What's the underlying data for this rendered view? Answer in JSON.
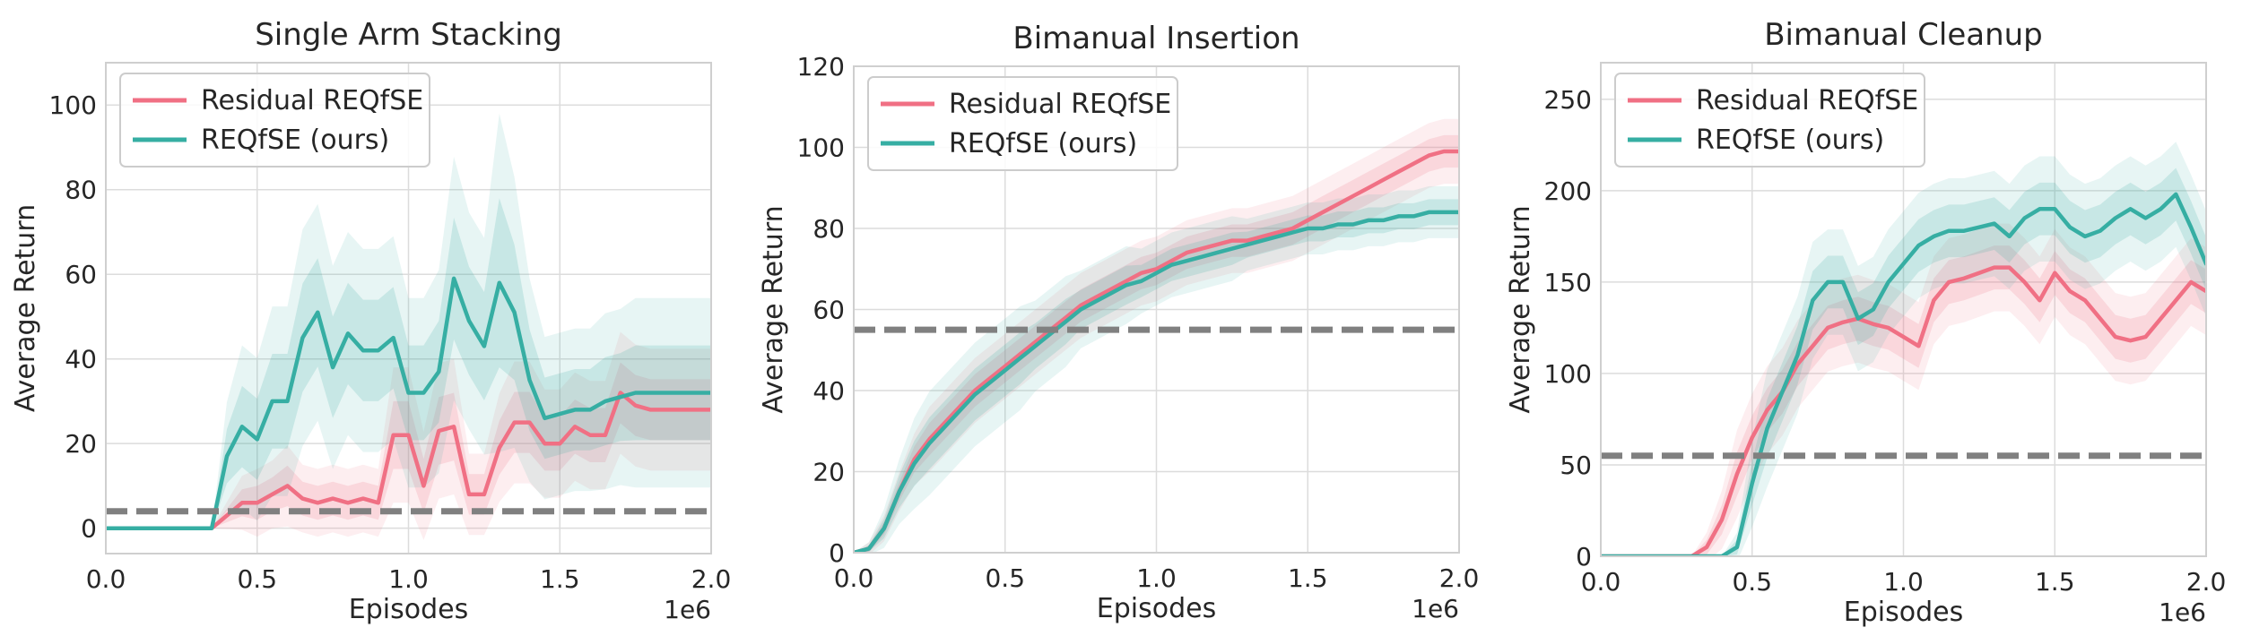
{
  "chart_data": [
    {
      "type": "line",
      "title": "Single Arm Stacking",
      "xlabel": "Episodes",
      "ylabel": "Average Return",
      "x_multiplier_label": "1e6",
      "xlim": [
        0,
        2.0
      ],
      "ylim": [
        -6,
        110
      ],
      "xticks": [
        0.0,
        0.5,
        1.0,
        1.5,
        2.0
      ],
      "xtick_labels": [
        "0.0",
        "0.5",
        "1.0",
        "1.5",
        "2.0"
      ],
      "yticks": [
        0,
        20,
        40,
        60,
        80,
        100
      ],
      "ytick_labels": [
        "0",
        "20",
        "40",
        "60",
        "80",
        "100"
      ],
      "grid": true,
      "legend_position": "top-left",
      "baseline": 4,
      "series": [
        {
          "name": "Residual REQfSE",
          "color": "#f07084",
          "x": [
            0,
            0.05,
            0.1,
            0.15,
            0.2,
            0.25,
            0.3,
            0.35,
            0.4,
            0.45,
            0.5,
            0.55,
            0.6,
            0.65,
            0.7,
            0.75,
            0.8,
            0.85,
            0.9,
            0.95,
            1.0,
            1.05,
            1.1,
            1.15,
            1.2,
            1.25,
            1.3,
            1.35,
            1.4,
            1.45,
            1.5,
            1.55,
            1.6,
            1.65,
            1.7,
            1.75,
            1.8,
            1.85,
            1.9,
            1.95,
            2.0
          ],
          "values": [
            0,
            0,
            0,
            0,
            0,
            0,
            0,
            0,
            3,
            6,
            6,
            8,
            10,
            7,
            6,
            7,
            6,
            7,
            6,
            22,
            22,
            10,
            23,
            24,
            8,
            8,
            19,
            25,
            25,
            20,
            20,
            24,
            22,
            22,
            32,
            29,
            28,
            28,
            28,
            28,
            28
          ],
          "spread": [
            0,
            0,
            0,
            0,
            0,
            0,
            0,
            0,
            2,
            4,
            5,
            5,
            6,
            5,
            5,
            5,
            5,
            5,
            5,
            10,
            10,
            8,
            10,
            10,
            6,
            6,
            8,
            9,
            9,
            8,
            8,
            8,
            8,
            8,
            9,
            9,
            9,
            9,
            9,
            9,
            9
          ]
        },
        {
          "name": "REQfSE (ours)",
          "color": "#36aea3",
          "x": [
            0,
            0.05,
            0.1,
            0.15,
            0.2,
            0.25,
            0.3,
            0.35,
            0.4,
            0.45,
            0.5,
            0.55,
            0.6,
            0.65,
            0.7,
            0.75,
            0.8,
            0.85,
            0.9,
            0.95,
            1.0,
            1.05,
            1.1,
            1.15,
            1.2,
            1.25,
            1.3,
            1.35,
            1.4,
            1.45,
            1.5,
            1.55,
            1.6,
            1.65,
            1.7,
            1.75,
            1.8,
            1.85,
            1.9,
            1.95,
            2.0
          ],
          "values": [
            0,
            0,
            0,
            0,
            0,
            0,
            0,
            0,
            17,
            24,
            21,
            30,
            30,
            45,
            51,
            38,
            46,
            42,
            42,
            45,
            32,
            32,
            37,
            59,
            49,
            43,
            58,
            51,
            35,
            26,
            27,
            28,
            28,
            30,
            31,
            32,
            32,
            32,
            32,
            32,
            32
          ],
          "spread": [
            0,
            0,
            0,
            0,
            0,
            0,
            0,
            0,
            8,
            12,
            12,
            14,
            14,
            16,
            16,
            15,
            15,
            15,
            15,
            15,
            14,
            14,
            15,
            18,
            16,
            16,
            25,
            20,
            15,
            12,
            12,
            12,
            12,
            13,
            13,
            14,
            14,
            14,
            14,
            14,
            14
          ]
        }
      ]
    },
    {
      "type": "line",
      "title": "Bimanual Insertion",
      "xlabel": "Episodes",
      "ylabel": "Average Return",
      "x_multiplier_label": "1e6",
      "xlim": [
        0,
        2.0
      ],
      "ylim": [
        0,
        120
      ],
      "xticks": [
        0.0,
        0.5,
        1.0,
        1.5,
        2.0
      ],
      "xtick_labels": [
        "0.0",
        "0.5",
        "1.0",
        "1.5",
        "2.0"
      ],
      "yticks": [
        0,
        20,
        40,
        60,
        80,
        100,
        120
      ],
      "ytick_labels": [
        "0",
        "20",
        "40",
        "60",
        "80",
        "100",
        "120"
      ],
      "grid": true,
      "legend_position": "top-left",
      "baseline": 55,
      "series": [
        {
          "name": "Residual REQfSE",
          "color": "#f07084",
          "x": [
            0,
            0.05,
            0.1,
            0.15,
            0.2,
            0.25,
            0.3,
            0.35,
            0.4,
            0.45,
            0.5,
            0.55,
            0.6,
            0.65,
            0.7,
            0.75,
            0.8,
            0.85,
            0.9,
            0.95,
            1.0,
            1.05,
            1.1,
            1.15,
            1.2,
            1.25,
            1.3,
            1.35,
            1.4,
            1.45,
            1.5,
            1.55,
            1.6,
            1.65,
            1.7,
            1.75,
            1.8,
            1.85,
            1.9,
            1.95,
            2.0
          ],
          "values": [
            0,
            1,
            6,
            15,
            23,
            28,
            32,
            36,
            40,
            43,
            46,
            49,
            52,
            55,
            58,
            61,
            63,
            65,
            67,
            69,
            70,
            72,
            74,
            75,
            76,
            77,
            77,
            78,
            79,
            80,
            82,
            84,
            86,
            88,
            90,
            92,
            94,
            96,
            98,
            99,
            99
          ],
          "spread": [
            0,
            1,
            2,
            3,
            4,
            5,
            5,
            5,
            5,
            5,
            5,
            5,
            5,
            5,
            5,
            5,
            5,
            5,
            5,
            5,
            5,
            5,
            5,
            5,
            5,
            5,
            5,
            5,
            5,
            5,
            5,
            5,
            5,
            5,
            5,
            5,
            5,
            5,
            5,
            5,
            5
          ]
        },
        {
          "name": "REQfSE (ours)",
          "color": "#36aea3",
          "x": [
            0,
            0.05,
            0.1,
            0.15,
            0.2,
            0.25,
            0.3,
            0.35,
            0.4,
            0.45,
            0.5,
            0.55,
            0.6,
            0.65,
            0.7,
            0.75,
            0.8,
            0.85,
            0.9,
            0.95,
            1.0,
            1.05,
            1.1,
            1.15,
            1.2,
            1.25,
            1.3,
            1.35,
            1.4,
            1.45,
            1.5,
            1.55,
            1.6,
            1.65,
            1.7,
            1.75,
            1.8,
            1.85,
            1.9,
            1.95,
            2.0
          ],
          "values": [
            0,
            1,
            6,
            15,
            22,
            27,
            31,
            35,
            39,
            42,
            45,
            48,
            51,
            54,
            57,
            60,
            62,
            64,
            66,
            67,
            69,
            71,
            72,
            73,
            74,
            75,
            76,
            77,
            78,
            79,
            80,
            80,
            81,
            81,
            82,
            82,
            83,
            83,
            84,
            84,
            84
          ],
          "spread": [
            0,
            1,
            3,
            5,
            7,
            8,
            8,
            8,
            8,
            8,
            8,
            8,
            7,
            7,
            7,
            6,
            6,
            6,
            6,
            5,
            5,
            5,
            5,
            5,
            5,
            5,
            4,
            4,
            4,
            4,
            4,
            4,
            4,
            4,
            4,
            4,
            4,
            4,
            4,
            4,
            4
          ]
        }
      ]
    },
    {
      "type": "line",
      "title": "Bimanual Cleanup",
      "xlabel": "Episodes",
      "ylabel": "Average Return",
      "x_multiplier_label": "1e6",
      "xlim": [
        0,
        2.0
      ],
      "ylim": [
        0,
        270
      ],
      "xticks": [
        0.0,
        0.5,
        1.0,
        1.5,
        2.0
      ],
      "xtick_labels": [
        "0.0",
        "0.5",
        "1.0",
        "1.5",
        "2.0"
      ],
      "yticks": [
        0,
        50,
        100,
        150,
        200,
        250
      ],
      "ytick_labels": [
        "0",
        "50",
        "100",
        "150",
        "200",
        "250"
      ],
      "grid": true,
      "legend_position": "top-left",
      "baseline": 55,
      "series": [
        {
          "name": "Residual REQfSE",
          "color": "#f07084",
          "x": [
            0,
            0.05,
            0.1,
            0.15,
            0.2,
            0.25,
            0.3,
            0.35,
            0.4,
            0.45,
            0.5,
            0.55,
            0.6,
            0.65,
            0.7,
            0.75,
            0.8,
            0.85,
            0.9,
            0.95,
            1.0,
            1.05,
            1.1,
            1.15,
            1.2,
            1.25,
            1.3,
            1.35,
            1.4,
            1.45,
            1.5,
            1.55,
            1.6,
            1.65,
            1.7,
            1.75,
            1.8,
            1.85,
            1.9,
            1.95,
            2.0
          ],
          "values": [
            0,
            0,
            0,
            0,
            0,
            0,
            0,
            5,
            20,
            45,
            65,
            80,
            90,
            105,
            115,
            125,
            128,
            130,
            127,
            125,
            120,
            115,
            140,
            150,
            152,
            155,
            158,
            158,
            150,
            140,
            155,
            145,
            140,
            130,
            120,
            118,
            120,
            130,
            140,
            150,
            145
          ],
          "spread": [
            0,
            0,
            0,
            0,
            0,
            0,
            0,
            5,
            10,
            15,
            15,
            15,
            15,
            15,
            15,
            15,
            15,
            15,
            15,
            15,
            15,
            15,
            15,
            15,
            15,
            15,
            15,
            15,
            15,
            15,
            15,
            15,
            15,
            15,
            15,
            15,
            15,
            15,
            15,
            15,
            15
          ]
        },
        {
          "name": "REQfSE (ours)",
          "color": "#36aea3",
          "x": [
            0,
            0.05,
            0.1,
            0.15,
            0.2,
            0.25,
            0.3,
            0.35,
            0.4,
            0.45,
            0.5,
            0.55,
            0.6,
            0.65,
            0.7,
            0.75,
            0.8,
            0.85,
            0.9,
            0.95,
            1.0,
            1.05,
            1.1,
            1.15,
            1.2,
            1.25,
            1.3,
            1.35,
            1.4,
            1.45,
            1.5,
            1.55,
            1.6,
            1.65,
            1.7,
            1.75,
            1.8,
            1.85,
            1.9,
            1.95,
            2.0
          ],
          "values": [
            0,
            0,
            0,
            0,
            0,
            0,
            0,
            0,
            0,
            5,
            40,
            70,
            90,
            110,
            140,
            150,
            150,
            130,
            135,
            150,
            160,
            170,
            175,
            178,
            178,
            180,
            182,
            175,
            185,
            190,
            190,
            180,
            175,
            178,
            185,
            190,
            185,
            190,
            198,
            180,
            160
          ],
          "spread": [
            0,
            0,
            0,
            0,
            0,
            0,
            0,
            0,
            0,
            5,
            15,
            20,
            20,
            20,
            20,
            18,
            18,
            18,
            18,
            18,
            18,
            18,
            18,
            18,
            18,
            18,
            18,
            18,
            18,
            18,
            18,
            18,
            18,
            18,
            18,
            18,
            18,
            18,
            18,
            18,
            18
          ]
        }
      ]
    }
  ]
}
